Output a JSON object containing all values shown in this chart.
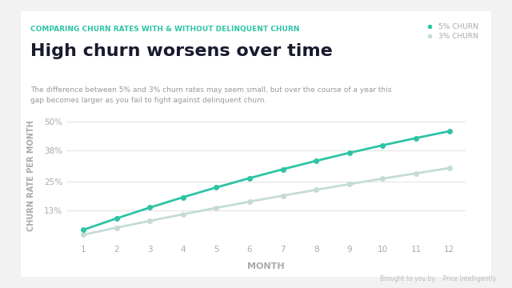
{
  "title": "High churn worsens over time",
  "subtitle": "COMPARING CHURN RATES WITH & WITHOUT DELINQUENT CHURN",
  "description": "The difference between 5% and 3% churn rates may seem small, but over the course of a year this\ngap becomes larger as you fail to fight against delinquent churn.",
  "xlabel": "MONTH",
  "ylabel": "CHURN RATE PER MONTH",
  "months": [
    1,
    2,
    3,
    4,
    5,
    6,
    7,
    8,
    9,
    10,
    11,
    12
  ],
  "churn_5pct": [
    5.0,
    9.75,
    14.26,
    18.55,
    22.62,
    26.49,
    30.17,
    33.66,
    36.98,
    40.13,
    43.12,
    45.96
  ],
  "churn_3pct": [
    3.0,
    5.91,
    8.73,
    11.48,
    14.13,
    16.71,
    19.21,
    21.64,
    23.99,
    26.28,
    28.49,
    30.65
  ],
  "color_5pct": "#2ec4a5",
  "color_3pct": "#c5dbd8",
  "background_color": "#f2f2f2",
  "card_color": "#ffffff",
  "subtitle_color": "#2ec4a5",
  "title_color": "#1a1a2e",
  "desc_color": "#999999",
  "yticks": [
    13,
    25,
    38,
    50
  ],
  "ytick_labels": [
    "13%",
    "25%",
    "38%",
    "50%"
  ],
  "ylim": [
    0,
    55
  ],
  "grid_color": "#e5e5e5",
  "axis_label_color": "#aaaaaa",
  "legend_label_5": "5% CHURN",
  "legend_label_3": "3% CHURN",
  "watermark": "Brought to you by    Price Intelligently"
}
